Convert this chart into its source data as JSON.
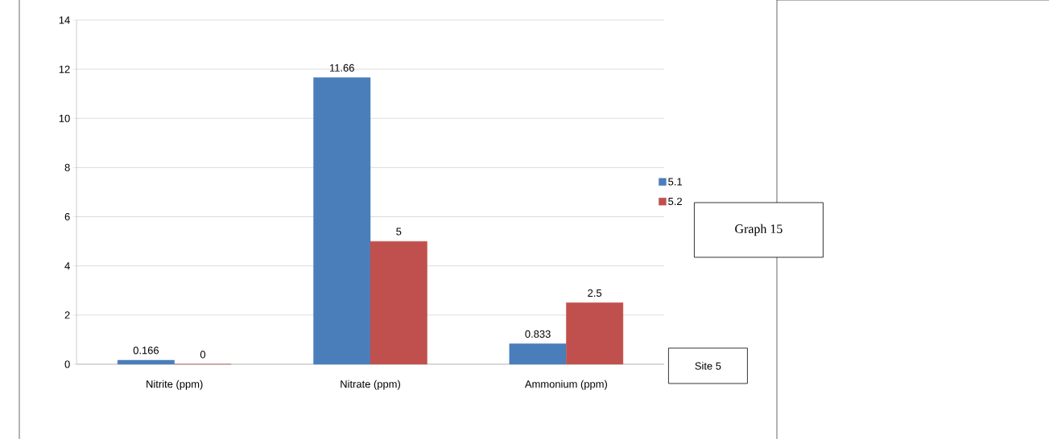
{
  "chart_data": {
    "type": "bar",
    "categories": [
      "Nitrite (ppm)",
      "Nitrate (ppm)",
      "Ammonium (ppm)"
    ],
    "series": [
      {
        "name": "5.1",
        "color": "#4a7ebb",
        "values": [
          0.166,
          11.66,
          0.833
        ]
      },
      {
        "name": "5.2",
        "color": "#c0504d",
        "values": [
          0,
          5,
          2.5
        ]
      }
    ],
    "ylim": [
      0,
      14
    ],
    "yticks": [
      0,
      2,
      4,
      6,
      8,
      10,
      12,
      14
    ],
    "grid": "y",
    "legend": "right",
    "data_labels": true,
    "annotations": [
      "Graph 15",
      "Site 5"
    ]
  }
}
